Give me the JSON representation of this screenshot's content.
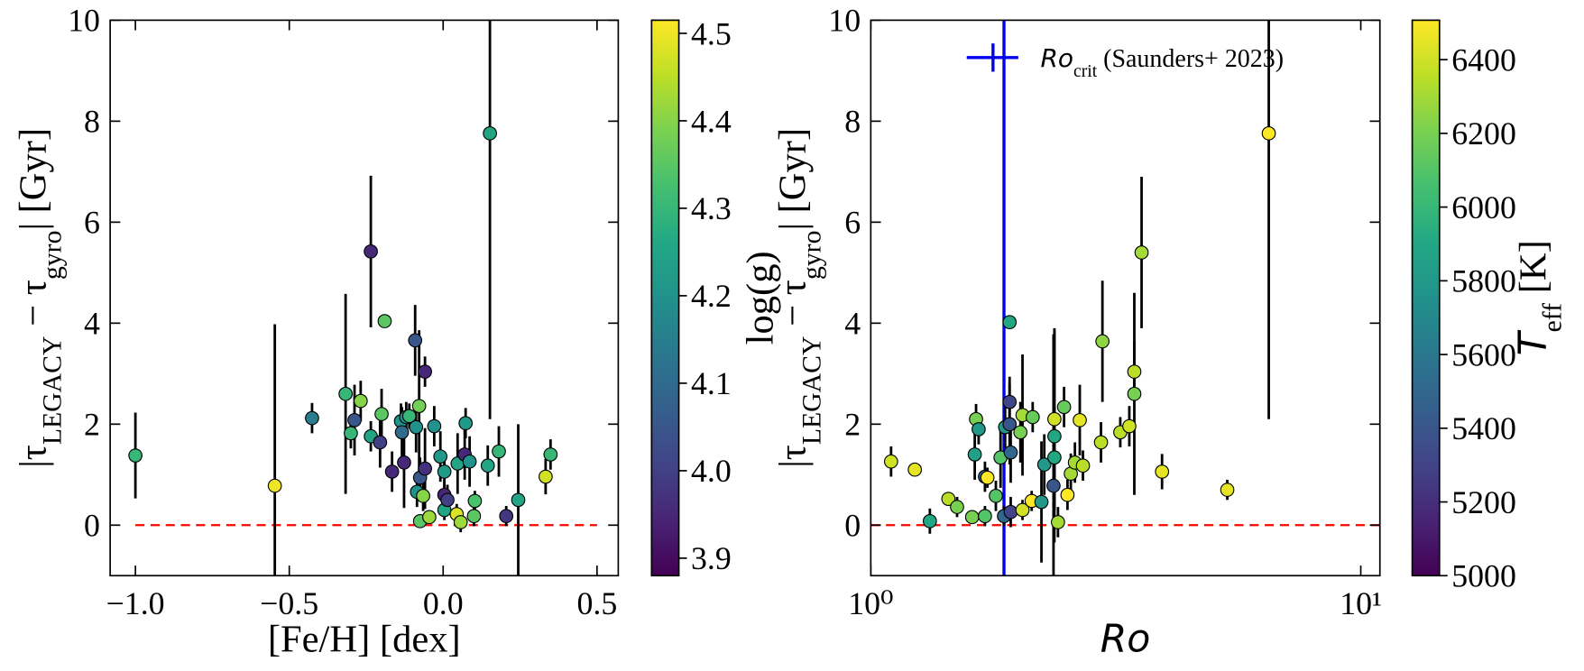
{
  "chart_data": [
    {
      "type": "scatter",
      "xlabel": [
        "[Fe/H] [dex]"
      ],
      "ylabel": [
        "|τ",
        "LEGACY",
        " − τ",
        "gyro",
        "| [Gyr]"
      ],
      "xlim": [
        -1.082,
        0.569
      ],
      "ylim": [
        -1,
        10
      ],
      "xticks": [
        {
          "value": -1.0,
          "label": "−1.0"
        },
        {
          "value": -0.5,
          "label": "−0.5"
        },
        {
          "value": 0.0,
          "label": "0.0"
        },
        {
          "value": 0.5,
          "label": "0.5"
        }
      ],
      "yticks": [
        0,
        2,
        4,
        6,
        8,
        10
      ],
      "hline": 0,
      "hline_x": [
        -1.0,
        0.5
      ],
      "hline_color": "#ff0000",
      "colormap": "viridis",
      "clim": [
        3.88,
        4.515
      ],
      "cticks": [
        3.9,
        {
          "value": 4.0,
          "label": "4.0"
        },
        4.1,
        4.2,
        4.3,
        4.4,
        4.5
      ],
      "clabel": [
        "log(g)"
      ],
      "x": [
        -1.0,
        -0.547,
        -0.426,
        -0.317,
        -0.3,
        -0.288,
        -0.268,
        -0.235,
        -0.235,
        -0.205,
        -0.2,
        -0.19,
        -0.166,
        -0.137,
        -0.134,
        -0.127,
        -0.12,
        -0.11,
        -0.091,
        -0.088,
        -0.085,
        -0.078,
        -0.075,
        -0.075,
        -0.065,
        -0.059,
        -0.059,
        -0.045,
        -0.029,
        -0.009,
        0.004,
        0.004,
        0.004,
        0.014,
        0.044,
        0.047,
        0.057,
        0.07,
        0.073,
        0.086,
        0.1,
        0.103,
        0.145,
        0.152,
        0.181,
        0.205,
        0.244,
        0.333,
        0.349
      ],
      "y": [
        1.38,
        0.78,
        2.12,
        2.6,
        1.82,
        2.08,
        2.46,
        1.76,
        5.42,
        1.64,
        2.2,
        4.04,
        1.06,
        2.06,
        1.84,
        1.24,
        2.14,
        2.16,
        3.66,
        1.94,
        0.66,
        2.36,
        0.94,
        0.08,
        0.58,
        3.04,
        1.12,
        0.16,
        1.96,
        1.36,
        1.06,
        0.6,
        0.3,
        0.5,
        0.22,
        1.22,
        0.06,
        1.4,
        2.02,
        1.26,
        0.18,
        0.48,
        1.18,
        7.76,
        1.46,
        0.18,
        0.5,
        0.96,
        1.4
      ],
      "errors": [
        0.85,
        3.2,
        0.3,
        1.98,
        0.3,
        0.7,
        0.4,
        0.3,
        1.5,
        0.5,
        0.5,
        0.12,
        0.4,
        0.35,
        0.5,
        0.9,
        0.3,
        0.25,
        0.7,
        0.5,
        0.3,
        1.5,
        0.4,
        0.1,
        0.3,
        0.3,
        0.8,
        0.1,
        0.4,
        0.5,
        0.4,
        0.3,
        0.2,
        0.3,
        0.2,
        0.6,
        0.2,
        0.5,
        0.3,
        0.5,
        0.2,
        0.2,
        0.4,
        5.66,
        0.5,
        0.2,
        1.5,
        0.35,
        0.3
      ],
      "c": [
        4.3,
        4.5,
        4.15,
        4.3,
        4.3,
        4.05,
        4.4,
        4.25,
        3.95,
        4.0,
        4.35,
        4.35,
        3.95,
        4.2,
        4.1,
        3.95,
        4.2,
        4.3,
        4.05,
        4.2,
        4.2,
        4.38,
        4.05,
        4.35,
        4.4,
        3.95,
        3.97,
        4.42,
        4.2,
        4.22,
        4.22,
        3.95,
        4.25,
        4.0,
        4.48,
        4.25,
        4.42,
        3.95,
        4.22,
        4.2,
        4.35,
        4.33,
        4.25,
        4.25,
        4.3,
        3.98,
        4.25,
        4.47,
        4.3
      ]
    },
    {
      "type": "scatter",
      "xlog": true,
      "xlabel": [
        "Ro"
      ],
      "ylabel": [
        "|τ",
        "LEGACY",
        " − τ",
        "gyro",
        "| [Gyr]"
      ],
      "xlim": [
        1,
        10.94
      ],
      "ylim": [
        -1,
        10
      ],
      "xticks": [
        {
          "value": 1,
          "label": "10⁰"
        },
        {
          "value": 10,
          "label": "10¹"
        }
      ],
      "yticks": [
        0,
        2,
        4,
        6,
        8,
        10
      ],
      "hline": 0,
      "hline_color": "#ff0000",
      "vline": 1.87,
      "vline_color": "#0000ee",
      "vline_label": [
        "Ro",
        "crit",
        " (Saunders+ 2023)"
      ],
      "colormap": "viridis",
      "clim": [
        5000,
        6507
      ],
      "cticks": [
        5000,
        5200,
        5400,
        5600,
        5800,
        6000,
        6200,
        6400
      ],
      "clabel": [
        "T",
        "eff",
        " [K]"
      ],
      "x": [
        1.1,
        1.23,
        1.32,
        1.44,
        1.5,
        1.61,
        1.63,
        1.64,
        1.66,
        1.71,
        1.71,
        1.73,
        1.8,
        1.84,
        1.87,
        1.88,
        1.92,
        1.92,
        1.92,
        1.93,
        1.93,
        2.02,
        2.04,
        2.04,
        2.13,
        2.14,
        2.23,
        2.26,
        2.36,
        2.37,
        2.37,
        2.37,
        2.41,
        2.48,
        2.52,
        2.56,
        2.61,
        2.67,
        2.71,
        2.95,
        2.97,
        3.23,
        3.37,
        3.45,
        3.45,
        3.57,
        3.93,
        5.34,
        6.49
      ],
      "y": [
        1.26,
        1.1,
        0.08,
        0.52,
        0.36,
        0.16,
        1.4,
        2.1,
        1.9,
        0.18,
        0.96,
        0.94,
        0.58,
        1.34,
        0.18,
        1.94,
        4.02,
        2.44,
        2.0,
        1.44,
        0.26,
        1.84,
        2.18,
        0.3,
        0.48,
        2.14,
        0.46,
        1.2,
        0.78,
        2.1,
        1.76,
        1.34,
        0.06,
        2.34,
        0.6,
        1.02,
        1.24,
        2.08,
        1.18,
        1.64,
        3.64,
        1.84,
        1.96,
        3.04,
        2.6,
        5.4,
        1.06,
        0.7,
        7.76
      ],
      "errors": [
        0.3,
        0.1,
        0.25,
        0.1,
        0.2,
        0.1,
        0.5,
        0.3,
        0.3,
        0.2,
        0.3,
        0.2,
        0.3,
        0.6,
        0.2,
        0.4,
        0.12,
        0.5,
        0.8,
        0.6,
        0.3,
        0.6,
        1.2,
        0.2,
        0.2,
        0.3,
        1.2,
        0.6,
        3.0,
        1.8,
        2.1,
        1.0,
        0.3,
        0.4,
        0.3,
        0.4,
        0.4,
        0.7,
        0.3,
        0.4,
        1.2,
        0.3,
        0.4,
        0.6,
        2.0,
        1.5,
        0.35,
        0.2,
        5.66
      ],
      "c": [
        6400,
        6450,
        5900,
        6350,
        6200,
        6200,
        5850,
        6200,
        5800,
        6100,
        5400,
        6500,
        6100,
        6100,
        5500,
        5800,
        5900,
        5300,
        5400,
        5500,
        5300,
        6200,
        6300,
        6400,
        6500,
        6150,
        5800,
        5800,
        5400,
        6400,
        5900,
        5900,
        6300,
        6150,
        6500,
        6300,
        6300,
        6450,
        6350,
        6350,
        6250,
        6350,
        6400,
        6350,
        6200,
        6300,
        6450,
        6450,
        6500
      ]
    }
  ]
}
